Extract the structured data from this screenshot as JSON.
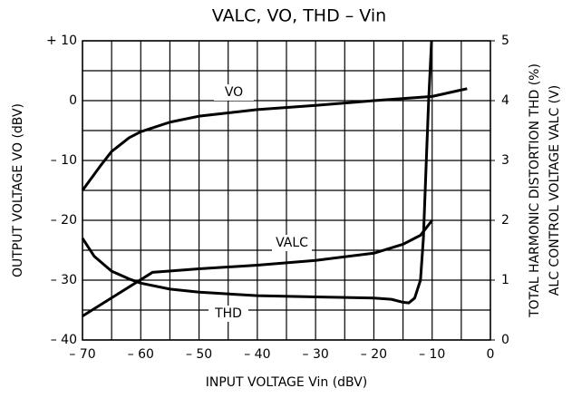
{
  "chart_data": {
    "type": "line",
    "title": "VALC, VO, THD  –  Vin",
    "x_label": "INPUT VOLTAGE   Vin   (dBV)",
    "y_label": "OUTPUT VOLTAGE   VO   (dBV)",
    "y2_labels": [
      "TOTAL HARMONIC DISTORTION   THD   (%)",
      "ALC CONTROL VOLTAGE   VALC   (V)"
    ],
    "xlim": [
      -70,
      0
    ],
    "ylim": [
      -40,
      10
    ],
    "y2lim": [
      0,
      5
    ],
    "xticks": [
      {
        "value": -70,
        "label": "– 70"
      },
      {
        "value": -60,
        "label": "– 60"
      },
      {
        "value": -50,
        "label": "– 50"
      },
      {
        "value": -40,
        "label": "– 40"
      },
      {
        "value": -30,
        "label": "– 30"
      },
      {
        "value": -20,
        "label": "– 20"
      },
      {
        "value": -10,
        "label": "– 10"
      },
      0
    ],
    "yticks": [
      {
        "value": 10,
        "label": "+ 10"
      },
      0,
      {
        "value": -10,
        "label": "– 10"
      },
      {
        "value": -20,
        "label": "– 20"
      },
      {
        "value": -30,
        "label": "– 30"
      },
      {
        "value": -40,
        "label": "– 40"
      }
    ],
    "y2ticks": [
      0,
      1,
      2,
      3,
      4,
      5
    ],
    "xminor": [
      -65,
      -55,
      -45,
      -35,
      -25,
      -15,
      -5
    ],
    "yminor": [
      5,
      -5,
      -15,
      -25,
      -35
    ],
    "grid": true,
    "series": [
      {
        "name": "VO",
        "color": "#000000",
        "axis": "y",
        "x": [
          -70,
          -67,
          -65,
          -62,
          -60,
          -55,
          -50,
          -40,
          -30,
          -20,
          -10,
          -4
        ],
        "values": [
          -15,
          -11,
          -8.5,
          -6.2,
          -5.2,
          -3.6,
          -2.6,
          -1.5,
          -0.8,
          0,
          0.7,
          2
        ]
      },
      {
        "name": "VALC",
        "color": "#000000",
        "axis": "y2",
        "x": [
          -70,
          -58,
          -50,
          -40,
          -30,
          -20,
          -15,
          -12,
          -10
        ],
        "values": [
          0.4,
          1.13,
          1.19,
          1.25,
          1.33,
          1.45,
          1.6,
          1.75,
          2.0
        ]
      },
      {
        "name": "THD",
        "color": "#000000",
        "axis": "y2",
        "x": [
          -70,
          -68,
          -65,
          -62,
          -60,
          -55,
          -50,
          -40,
          -30,
          -20,
          -17,
          -15,
          -14,
          -13,
          -12,
          -11.5,
          -11,
          -10.6,
          -10.3,
          -10.1
        ],
        "values": [
          1.7,
          1.4,
          1.15,
          1.02,
          0.95,
          0.85,
          0.8,
          0.74,
          0.72,
          0.7,
          0.68,
          0.63,
          0.62,
          0.7,
          1.0,
          1.7,
          3.0,
          4.0,
          4.6,
          5.0
        ]
      }
    ]
  }
}
